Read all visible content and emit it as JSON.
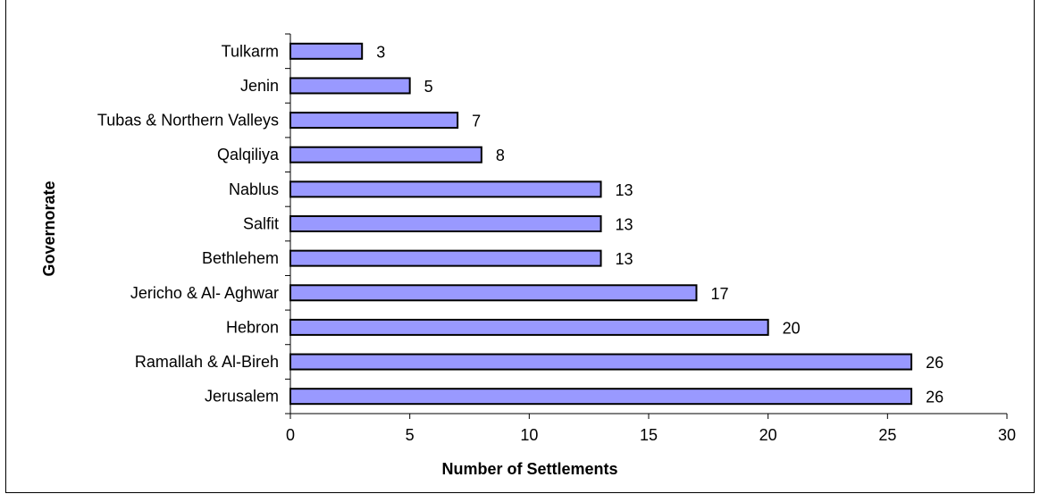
{
  "chart_data": {
    "type": "bar",
    "orientation": "horizontal",
    "title": "",
    "xlabel": "Number of Settlements",
    "ylabel": "Governorate",
    "xlim": [
      0,
      30
    ],
    "xticks": [
      "0",
      "5",
      "10",
      "15",
      "20",
      "25",
      "30"
    ],
    "grid": false,
    "legend": "none",
    "bar_color": "#9999FF",
    "bar_edge_color": "#000000",
    "categories": [
      "Tulkarm",
      "Jenin",
      "Tubas & Northern Valleys",
      "Qalqiliya",
      "Nablus",
      "Salfit",
      "Bethlehem",
      "Jericho & Al- Aghwar",
      "Hebron",
      "Ramallah & Al-Bireh",
      "Jerusalem"
    ],
    "values": [
      3,
      5,
      7,
      8,
      13,
      13,
      13,
      17,
      20,
      26,
      26
    ],
    "value_labels": [
      "3",
      "5",
      "7",
      "8",
      "13",
      "13",
      "13",
      "17",
      "20",
      "26",
      "26"
    ]
  }
}
